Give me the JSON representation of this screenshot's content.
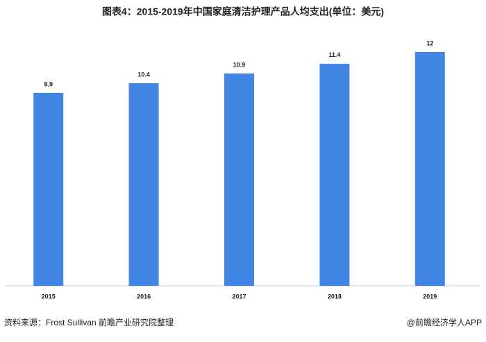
{
  "chart_data": {
    "type": "bar",
    "title": "图表4：2015-2019年中国家庭清洁护理产品人均支出(单位：美元)",
    "categories": [
      "2015",
      "2016",
      "2017",
      "2018",
      "2019"
    ],
    "values": [
      9.9,
      10.4,
      10.9,
      11.4,
      12
    ],
    "color": "#4285e4",
    "ylim": [
      0,
      12
    ]
  },
  "source": "资料来源：Frost Sullivan 前瞻产业研究院整理",
  "brand": "@前瞻经济学人APP"
}
